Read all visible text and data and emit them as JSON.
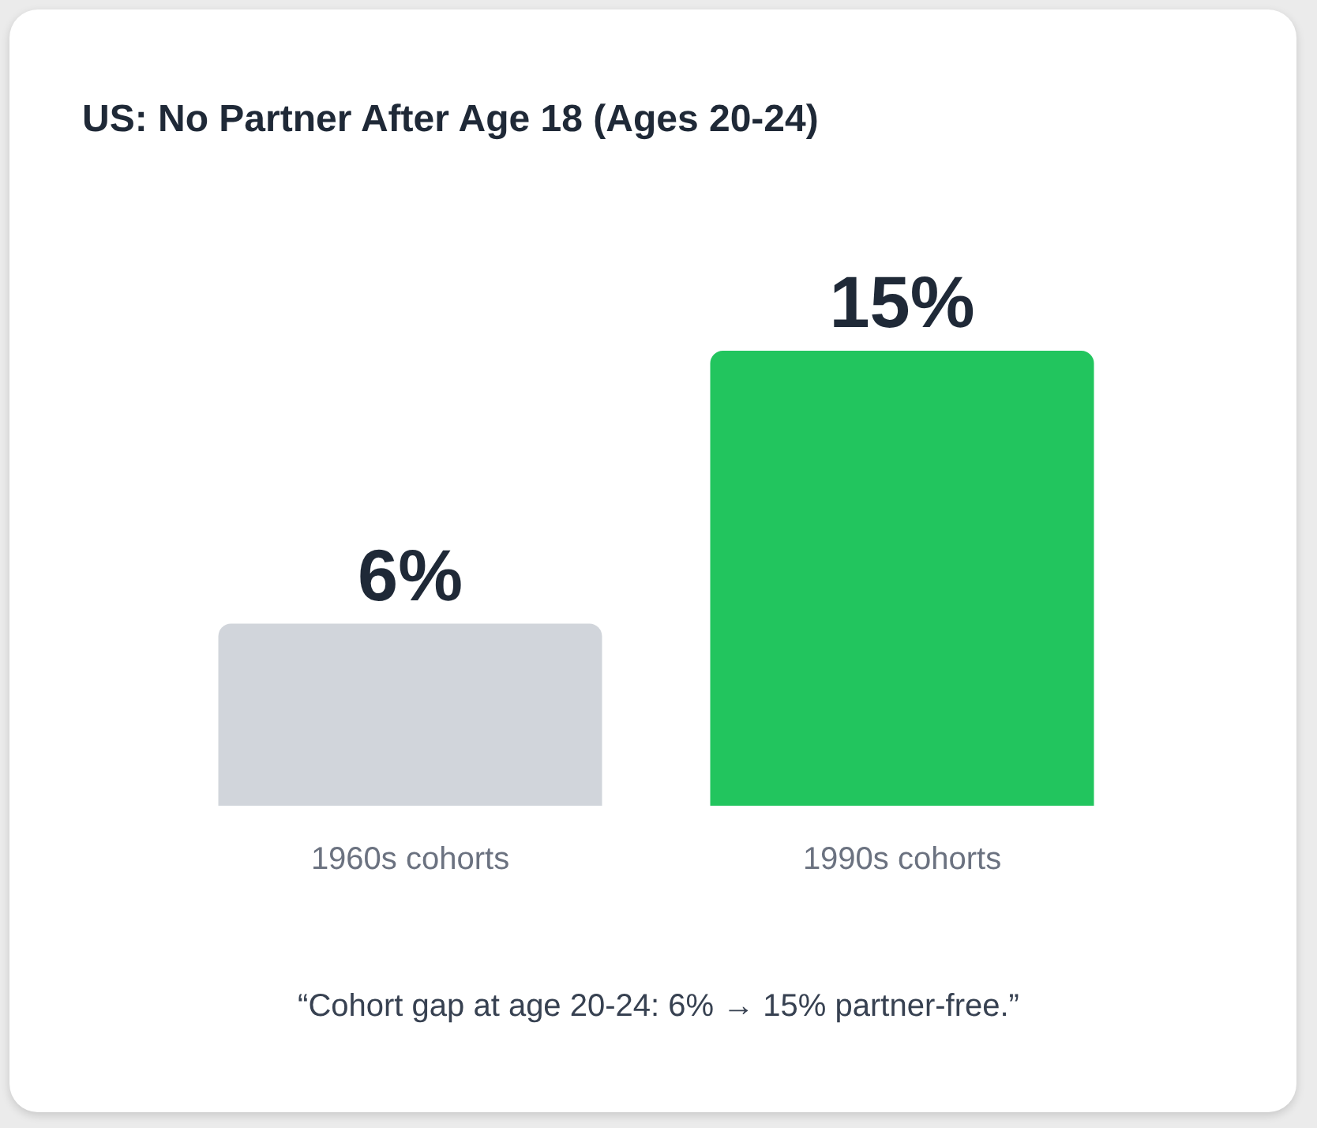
{
  "chart_data": {
    "type": "bar",
    "title": "US: No Partner After Age 18 (Ages 20-24)",
    "categories": [
      "1960s cohorts",
      "1990s cohorts"
    ],
    "values": [
      6,
      15
    ],
    "colors": [
      "#d1d5db",
      "#22c55e"
    ],
    "value_labels": [
      "6%",
      "15%"
    ],
    "annotations": [
      "“Cohort gap at age 20-24: 6% → 15% partner-free.”"
    ]
  }
}
